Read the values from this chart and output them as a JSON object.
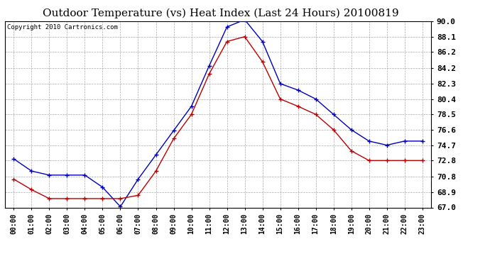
{
  "title": "Outdoor Temperature (vs) Heat Index (Last 24 Hours) 20100819",
  "copyright": "Copyright 2010 Cartronics.com",
  "hours": [
    "00:00",
    "01:00",
    "02:00",
    "03:00",
    "04:00",
    "05:00",
    "06:00",
    "07:00",
    "08:00",
    "09:00",
    "10:00",
    "11:00",
    "12:00",
    "13:00",
    "14:00",
    "15:00",
    "16:00",
    "17:00",
    "18:00",
    "19:00",
    "20:00",
    "21:00",
    "22:00",
    "23:00"
  ],
  "blue_temp": [
    73.0,
    71.5,
    71.0,
    71.0,
    71.0,
    69.5,
    67.1,
    70.5,
    73.5,
    76.5,
    79.5,
    84.5,
    89.3,
    90.2,
    87.5,
    82.3,
    81.5,
    80.4,
    78.5,
    76.6,
    75.2,
    74.7,
    75.2,
    75.2
  ],
  "red_heat": [
    70.5,
    69.2,
    68.1,
    68.1,
    68.1,
    68.1,
    68.1,
    68.5,
    71.5,
    75.5,
    78.5,
    83.5,
    87.5,
    88.1,
    85.0,
    80.4,
    79.5,
    78.5,
    76.6,
    74.0,
    72.8,
    72.8,
    72.8,
    72.8
  ],
  "ylim": [
    67.0,
    90.0
  ],
  "ytick_vals": [
    67.0,
    68.9,
    70.8,
    72.8,
    74.7,
    76.6,
    78.5,
    80.4,
    82.3,
    84.2,
    86.2,
    88.1,
    90.0
  ],
  "ytick_labels": [
    "67.0",
    "68.9",
    "70.8",
    "72.8",
    "74.7",
    "76.6",
    "78.5",
    "80.4",
    "82.3",
    "84.2",
    "86.2",
    "88.1",
    "90.0"
  ],
  "blue_color": "#0000bb",
  "red_color": "#bb0000",
  "bg_color": "#ffffff",
  "grid_color": "#aaaaaa",
  "title_fontsize": 11,
  "copyright_fontsize": 6.5,
  "tick_fontsize": 7,
  "ytick_fontsize": 8
}
